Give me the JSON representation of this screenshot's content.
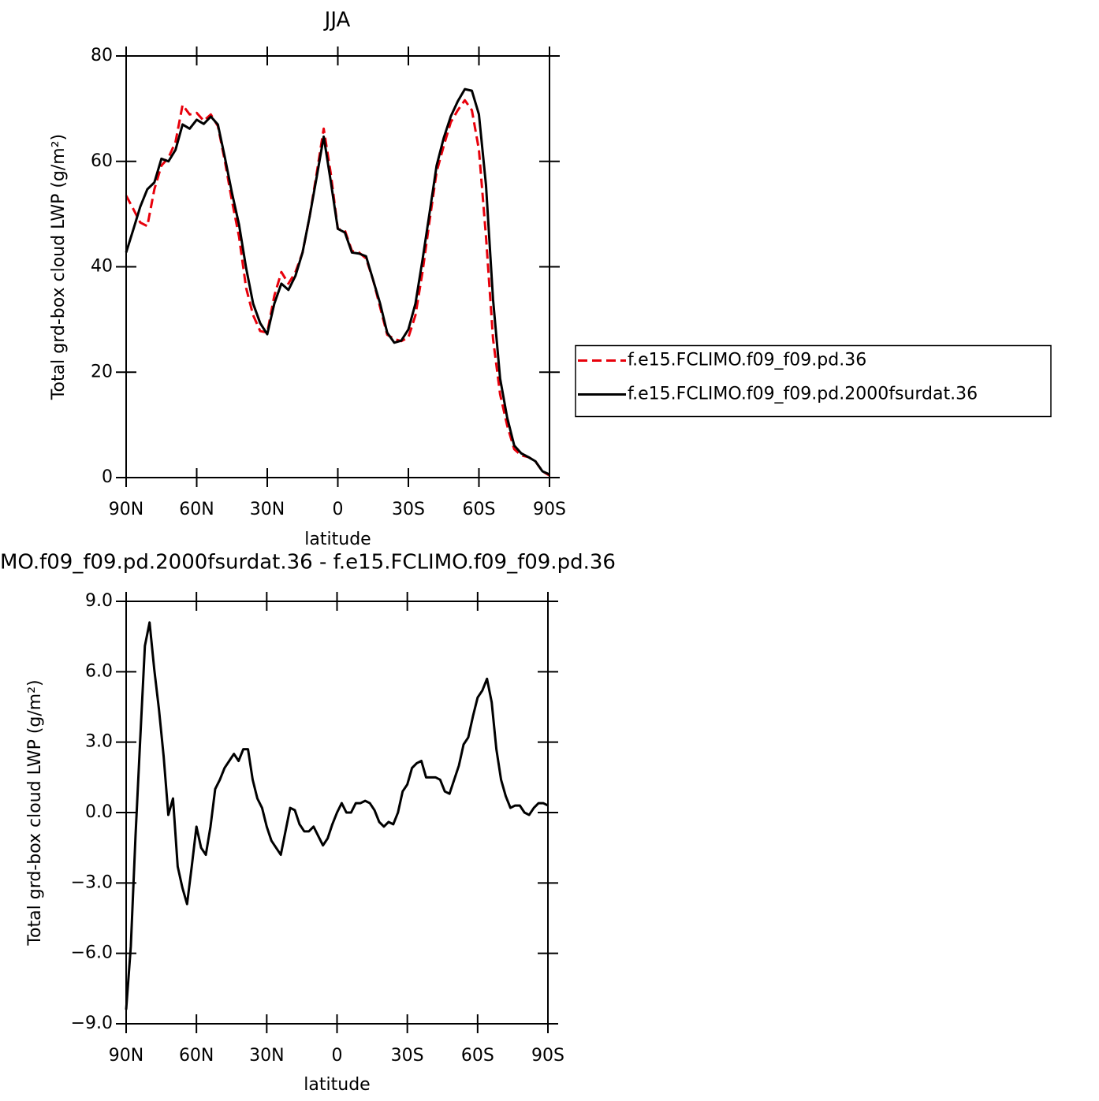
{
  "chart_data": [
    {
      "type": "line",
      "title": "JJA",
      "x_label": "latitude",
      "y_label": "Total grd-box cloud LWP (g/m²)",
      "xlim": [
        90,
        -90
      ],
      "xticks": [
        {
          "value": 90,
          "label": "90N"
        },
        {
          "value": 60,
          "label": "60N"
        },
        {
          "value": 30,
          "label": "30N"
        },
        0,
        {
          "value": -30,
          "label": "30S"
        },
        {
          "value": -60,
          "label": "60S"
        },
        {
          "value": -90,
          "label": "90S"
        }
      ],
      "ylim": [
        0,
        80
      ],
      "yticks": [
        0,
        20,
        40,
        60,
        80
      ],
      "legend": "right",
      "x": [
        90,
        87,
        84,
        81,
        78,
        75,
        72,
        69,
        66,
        63,
        60,
        57,
        54,
        51,
        48,
        45,
        42,
        39,
        36,
        33,
        30,
        27,
        24,
        21,
        18,
        15,
        12,
        9,
        6,
        3,
        0,
        -3,
        -6,
        -9,
        -12,
        -15,
        -18,
        -21,
        -24,
        -27,
        -30,
        -33,
        -36,
        -39,
        -42,
        -45,
        -48,
        -51,
        -54,
        -57,
        -60,
        -63,
        -66,
        -69,
        -72,
        -75,
        -78,
        -81,
        -84,
        -87,
        -90
      ],
      "series": [
        {
          "name": "f.e15.FCLIMO.f09_f09.pd.36",
          "color": "#e8000b",
          "linestyle": "dashed",
          "values": [
            53.5,
            51,
            48.4,
            47.7,
            54.7,
            59.2,
            60.7,
            63.7,
            70.7,
            68.9,
            69.2,
            67.7,
            68.9,
            66.7,
            60,
            52.5,
            45.7,
            36,
            30.8,
            27.8,
            27.5,
            34.5,
            39,
            36.8,
            39,
            42.7,
            49.5,
            57.7,
            66.2,
            57.7,
            47.2,
            46.9,
            43,
            42.7,
            41.6,
            37.5,
            32.3,
            27.1,
            26.3,
            25.9,
            26.6,
            30.8,
            39,
            48.7,
            58,
            62.9,
            67.4,
            69.7,
            71.6,
            69.7,
            62.2,
            45.7,
            26.3,
            15.8,
            9.9,
            5.4,
            4.2,
            3.9,
            3.1,
            1.2,
            0.4
          ]
        },
        {
          "name": "f.e15.FCLIMO.f09_f09.pd.2000fsurdat.36",
          "color": "#000000",
          "linestyle": "solid",
          "values": [
            42.7,
            47,
            51.4,
            54.7,
            56,
            60.5,
            60,
            62.2,
            67,
            66.2,
            67.9,
            67.1,
            68.5,
            67,
            60.7,
            54,
            48,
            39.8,
            33,
            29.3,
            27.2,
            33,
            36.8,
            35.6,
            38.3,
            42.7,
            49.5,
            57,
            64.7,
            56.2,
            47.2,
            46.5,
            42.7,
            42.5,
            42,
            37.5,
            33,
            27.5,
            25.6,
            26,
            28.1,
            33,
            41.3,
            50.2,
            59.2,
            64.4,
            68.5,
            71.4,
            73.7,
            73.4,
            68.9,
            55.5,
            33.8,
            18.8,
            11.4,
            6.1,
            4.6,
            3.9,
            3.1,
            1.2,
            0.6
          ]
        }
      ]
    },
    {
      "type": "line",
      "title": "MO.f09_f09.pd.2000fsurdat.36 - f.e15.FCLIMO.f09_f09.pd.36",
      "x_label": "latitude",
      "y_label": "Total grd-box cloud LWP (g/m²)",
      "xlim": [
        90,
        -90
      ],
      "xticks": [
        {
          "value": 90,
          "label": "90N"
        },
        {
          "value": 60,
          "label": "60N"
        },
        {
          "value": 30,
          "label": "30N"
        },
        0,
        {
          "value": -30,
          "label": "30S"
        },
        {
          "value": -60,
          "label": "60S"
        },
        {
          "value": -90,
          "label": "90S"
        }
      ],
      "ylim": [
        -9,
        9
      ],
      "yticks": [
        {
          "value": -9,
          "label": "−9.0"
        },
        {
          "value": -6,
          "label": "−6.0"
        },
        {
          "value": -3,
          "label": "−3.0"
        },
        {
          "value": 0,
          "label": "0.0"
        },
        {
          "value": 3,
          "label": "3.0"
        },
        {
          "value": 6,
          "label": "6.0"
        },
        {
          "value": 9,
          "label": "9.0"
        }
      ],
      "x": [
        90,
        88,
        86,
        84,
        82,
        80,
        78,
        76,
        74,
        72,
        70,
        68,
        66,
        64,
        62,
        60,
        58,
        56,
        54,
        52,
        50,
        48,
        46,
        44,
        42,
        40,
        38,
        36,
        34,
        32,
        30,
        28,
        26,
        24,
        22,
        20,
        18,
        16,
        14,
        12,
        10,
        8,
        6,
        4,
        2,
        0,
        -2,
        -4,
        -6,
        -8,
        -10,
        -12,
        -14,
        -16,
        -18,
        -20,
        -22,
        -24,
        -26,
        -28,
        -30,
        -32,
        -34,
        -36,
        -38,
        -40,
        -42,
        -44,
        -46,
        -48,
        -50,
        -52,
        -54,
        -56,
        -58,
        -60,
        -62,
        -64,
        -66,
        -68,
        -70,
        -72,
        -74,
        -76,
        -78,
        -80,
        -82,
        -84,
        -86,
        -88,
        -90
      ],
      "series": [
        {
          "color": "#000000",
          "linestyle": "solid",
          "values": [
            -8.4,
            -5.7,
            -1,
            3.1,
            7.1,
            8.1,
            6.1,
            4.4,
            2.4,
            -0.1,
            0.6,
            -2.3,
            -3.2,
            -3.9,
            -2.3,
            -0.6,
            -1.5,
            -1.8,
            -0.6,
            1,
            1.4,
            1.9,
            2.2,
            2.5,
            2.2,
            2.7,
            2.7,
            1.4,
            0.6,
            0.2,
            -0.6,
            -1.2,
            -1.5,
            -1.8,
            -0.8,
            0.2,
            0.1,
            -0.5,
            -0.8,
            -0.8,
            -0.6,
            -1,
            -1.4,
            -1.1,
            -0.5,
            0,
            0.4,
            0,
            0,
            0.4,
            0.4,
            0.5,
            0.4,
            0.1,
            -0.4,
            -0.6,
            -0.4,
            -0.5,
            0,
            0.9,
            1.2,
            1.9,
            2.1,
            2.2,
            1.5,
            1.5,
            1.5,
            1.4,
            0.9,
            0.8,
            1.4,
            2,
            2.9,
            3.2,
            4.1,
            4.9,
            5.2,
            5.7,
            4.7,
            2.7,
            1.4,
            0.7,
            0.2,
            0.3,
            0.3,
            0,
            -0.1,
            0.2,
            0.4,
            0.4,
            0.3
          ]
        }
      ]
    }
  ]
}
